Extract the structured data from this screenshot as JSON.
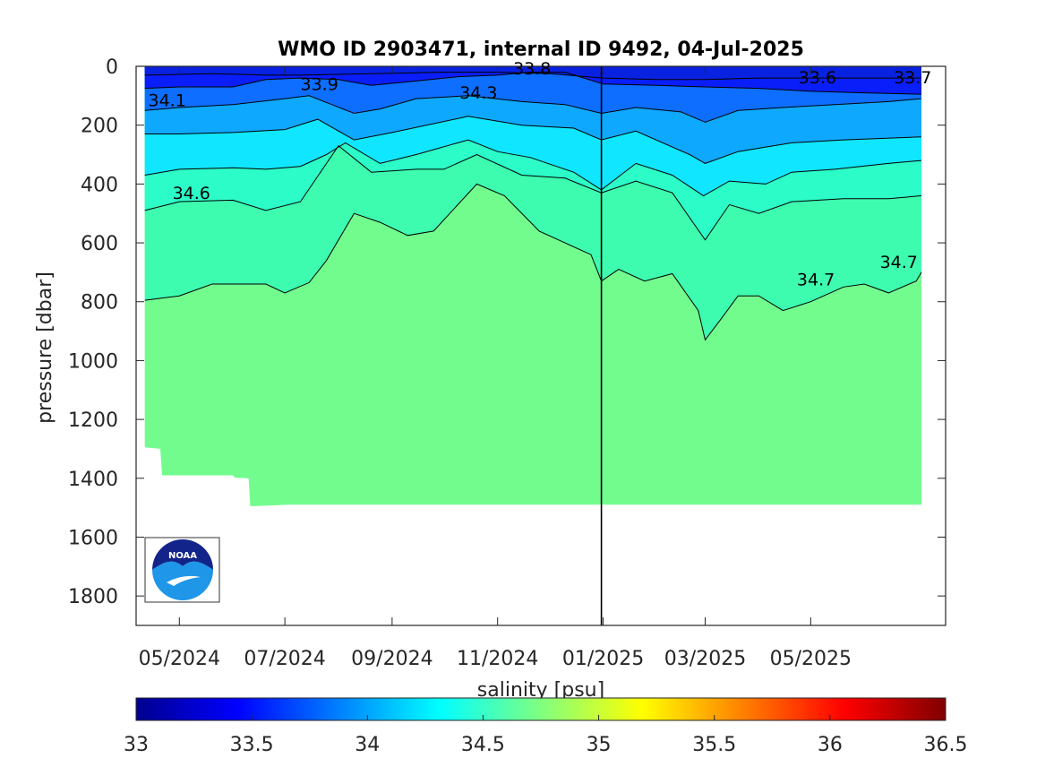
{
  "chart_data": {
    "type": "heatmap",
    "title": "WMO ID 2903471, internal ID 9492, 04-Jul-2025",
    "xlabel": "",
    "ylabel": "pressure [dbar]",
    "colorbar_label": "salinity [psu]",
    "colormap": "jet",
    "colorbar_range": [
      33,
      36.5
    ],
    "colorbar_ticks": [
      "33",
      "33.5",
      "34",
      "34.5",
      "35",
      "35.5",
      "36",
      "36.5"
    ],
    "y_reversed": true,
    "ylim": [
      0,
      1900
    ],
    "y_ticks": [
      0,
      200,
      400,
      600,
      800,
      1000,
      1200,
      1400,
      1600,
      1800
    ],
    "xlim": [
      "2024-04-06",
      "2025-07-18"
    ],
    "x_ticks": [
      {
        "date": "2024-05-01",
        "label": "05/2024"
      },
      {
        "date": "2024-07-01",
        "label": "07/2024"
      },
      {
        "date": "2024-09-01",
        "label": "09/2024"
      },
      {
        "date": "2024-11-01",
        "label": "11/2024"
      },
      {
        "date": "2025-01-01",
        "label": "01/2025"
      },
      {
        "date": "2025-03-01",
        "label": "03/2025"
      },
      {
        "date": "2025-05-01",
        "label": "05/2025"
      }
    ],
    "vertical_marker_date": "2024-12-31",
    "data_start": "2024-04-11",
    "data_end": "2025-07-04",
    "bands": [
      {
        "level": "33.6",
        "color": "#0a1efa",
        "depth": [
          [
            "2024-04-11",
            30
          ],
          [
            "2024-05-20",
            25
          ],
          [
            "2024-06-20",
            30
          ],
          [
            "2024-07-10",
            30
          ],
          [
            "2024-08-20",
            25
          ],
          [
            "2024-10-01",
            20
          ],
          [
            "2024-11-01",
            20
          ],
          [
            "2024-12-01",
            25
          ],
          [
            "2025-01-01",
            40
          ],
          [
            "2025-02-01",
            45
          ],
          [
            "2025-03-01",
            45
          ],
          [
            "2025-04-01",
            40
          ],
          [
            "2025-05-01",
            40
          ],
          [
            "2025-06-01",
            40
          ],
          [
            "2025-07-04",
            40
          ]
        ]
      },
      {
        "level": "33.8",
        "color": "#0d6eff",
        "depth": [
          [
            "2024-04-11",
            75
          ],
          [
            "2024-05-01",
            70
          ],
          [
            "2024-06-01",
            70
          ],
          [
            "2024-06-20",
            45
          ],
          [
            "2024-07-10",
            40
          ],
          [
            "2024-08-01",
            45
          ],
          [
            "2024-08-20",
            65
          ],
          [
            "2024-09-15",
            50
          ],
          [
            "2024-10-10",
            35
          ],
          [
            "2024-11-01",
            30
          ],
          [
            "2024-11-20",
            20
          ],
          [
            "2024-12-10",
            20
          ],
          [
            "2025-01-01",
            60
          ],
          [
            "2025-02-01",
            65
          ],
          [
            "2025-03-01",
            70
          ],
          [
            "2025-04-01",
            75
          ],
          [
            "2025-05-01",
            85
          ],
          [
            "2025-06-01",
            90
          ],
          [
            "2025-07-04",
            95
          ]
        ]
      },
      {
        "level": "34.1",
        "color": "#0fa8ff",
        "depth": [
          [
            "2024-04-11",
            150
          ],
          [
            "2024-05-01",
            140
          ],
          [
            "2024-06-01",
            130
          ],
          [
            "2024-07-01",
            110
          ],
          [
            "2024-07-15",
            100
          ],
          [
            "2024-08-10",
            160
          ],
          [
            "2024-08-25",
            145
          ],
          [
            "2024-09-15",
            110
          ],
          [
            "2024-10-15",
            100
          ],
          [
            "2024-11-15",
            120
          ],
          [
            "2024-12-10",
            130
          ],
          [
            "2024-12-31",
            160
          ],
          [
            "2025-01-20",
            140
          ],
          [
            "2025-02-15",
            155
          ],
          [
            "2025-03-01",
            190
          ],
          [
            "2025-03-20",
            150
          ],
          [
            "2025-04-15",
            140
          ],
          [
            "2025-05-15",
            130
          ],
          [
            "2025-06-15",
            120
          ],
          [
            "2025-07-04",
            110
          ]
        ]
      },
      {
        "level": "34.3",
        "color": "#10e6ff",
        "depth": [
          [
            "2024-04-11",
            230
          ],
          [
            "2024-05-01",
            230
          ],
          [
            "2024-06-01",
            225
          ],
          [
            "2024-07-01",
            215
          ],
          [
            "2024-07-20",
            180
          ],
          [
            "2024-08-10",
            250
          ],
          [
            "2024-09-01",
            225
          ],
          [
            "2024-10-15",
            170
          ],
          [
            "2024-11-15",
            200
          ],
          [
            "2024-12-15",
            210
          ],
          [
            "2024-12-31",
            250
          ],
          [
            "2025-01-20",
            220
          ],
          [
            "2025-02-20",
            300
          ],
          [
            "2025-03-01",
            330
          ],
          [
            "2025-03-20",
            290
          ],
          [
            "2025-04-20",
            260
          ],
          [
            "2025-05-20",
            250
          ],
          [
            "2025-07-04",
            240
          ]
        ]
      },
      {
        "level": "34.5",
        "color": "#2bfcc8",
        "depth": [
          [
            "2024-04-11",
            370
          ],
          [
            "2024-05-01",
            350
          ],
          [
            "2024-06-01",
            345
          ],
          [
            "2024-06-20",
            350
          ],
          [
            "2024-07-10",
            340
          ],
          [
            "2024-07-25",
            300
          ],
          [
            "2024-08-05",
            260
          ],
          [
            "2024-08-25",
            330
          ],
          [
            "2024-09-15",
            300
          ],
          [
            "2024-10-15",
            250
          ],
          [
            "2024-11-01",
            290
          ],
          [
            "2024-11-20",
            310
          ],
          [
            "2024-12-15",
            360
          ],
          [
            "2024-12-31",
            420
          ],
          [
            "2025-01-20",
            330
          ],
          [
            "2025-02-10",
            370
          ],
          [
            "2025-02-28",
            440
          ],
          [
            "2025-03-15",
            390
          ],
          [
            "2025-04-05",
            400
          ],
          [
            "2025-04-20",
            360
          ],
          [
            "2025-05-15",
            350
          ],
          [
            "2025-06-15",
            330
          ],
          [
            "2025-07-04",
            320
          ]
        ]
      },
      {
        "level": "34.6",
        "color": "#3dfcb0",
        "depth": [
          [
            "2024-04-11",
            490
          ],
          [
            "2024-05-01",
            460
          ],
          [
            "2024-06-01",
            455
          ],
          [
            "2024-06-20",
            490
          ],
          [
            "2024-07-10",
            460
          ],
          [
            "2024-08-01",
            270
          ],
          [
            "2024-08-20",
            360
          ],
          [
            "2024-09-15",
            350
          ],
          [
            "2024-10-01",
            350
          ],
          [
            "2024-10-20",
            300
          ],
          [
            "2024-11-15",
            370
          ],
          [
            "2024-12-10",
            380
          ],
          [
            "2024-12-31",
            430
          ],
          [
            "2025-01-20",
            390
          ],
          [
            "2025-02-10",
            430
          ],
          [
            "2025-03-01",
            590
          ],
          [
            "2025-03-15",
            470
          ],
          [
            "2025-04-01",
            500
          ],
          [
            "2025-04-20",
            460
          ],
          [
            "2025-05-20",
            450
          ],
          [
            "2025-06-15",
            450
          ],
          [
            "2025-07-04",
            440
          ]
        ]
      },
      {
        "level": "34.7",
        "color": "#72fc8e",
        "depth": [
          [
            "2024-04-11",
            795
          ],
          [
            "2024-05-01",
            780
          ],
          [
            "2024-05-20",
            740
          ],
          [
            "2024-06-20",
            740
          ],
          [
            "2024-07-01",
            770
          ],
          [
            "2024-07-15",
            735
          ],
          [
            "2024-07-25",
            660
          ],
          [
            "2024-08-10",
            500
          ],
          [
            "2024-08-25",
            530
          ],
          [
            "2024-09-10",
            575
          ],
          [
            "2024-09-25",
            560
          ],
          [
            "2024-10-20",
            400
          ],
          [
            "2024-11-05",
            440
          ],
          [
            "2024-11-25",
            560
          ],
          [
            "2024-12-10",
            600
          ],
          [
            "2024-12-25",
            640
          ],
          [
            "2024-12-31",
            730
          ],
          [
            "2025-01-10",
            690
          ],
          [
            "2025-01-25",
            730
          ],
          [
            "2025-02-10",
            705
          ],
          [
            "2025-02-25",
            830
          ],
          [
            "2025-03-01",
            930
          ],
          [
            "2025-03-10",
            860
          ],
          [
            "2025-03-20",
            780
          ],
          [
            "2025-04-01",
            780
          ],
          [
            "2025-04-15",
            830
          ],
          [
            "2025-05-01",
            800
          ],
          [
            "2025-05-20",
            750
          ],
          [
            "2025-06-01",
            740
          ],
          [
            "2025-06-15",
            770
          ],
          [
            "2025-07-01",
            730
          ],
          [
            "2025-07-04",
            700
          ]
        ]
      }
    ],
    "profile_bottom": [
      [
        "2024-04-11",
        1295
      ],
      [
        "2024-04-20",
        1300
      ],
      [
        "2024-04-21",
        1390
      ],
      [
        "2024-06-01",
        1390
      ],
      [
        "2024-06-02",
        1398
      ],
      [
        "2024-06-10",
        1400
      ],
      [
        "2024-06-11",
        1495
      ],
      [
        "2024-07-04",
        1490
      ],
      [
        "2025-07-04",
        1490
      ]
    ],
    "contour_labels": [
      {
        "text": "33.8",
        "date": "2024-11-10",
        "pressure": 28
      },
      {
        "text": "33.9",
        "date": "2024-07-10",
        "pressure": 80
      },
      {
        "text": "34.1",
        "date": "2024-04-13",
        "pressure": 135
      },
      {
        "text": "34.3",
        "date": "2024-10-10",
        "pressure": 110
      },
      {
        "text": "34.6",
        "date": "2024-04-27",
        "pressure": 450
      },
      {
        "text": "33.6",
        "date": "2025-04-24",
        "pressure": 58
      },
      {
        "text": "33.7",
        "date": "2025-06-18",
        "pressure": 58
      },
      {
        "text": "34.7",
        "date": "2025-04-23",
        "pressure": 745
      },
      {
        "text": "34.7",
        "date": "2025-06-10",
        "pressure": 685
      }
    ]
  },
  "logo": {
    "text": "NOAA",
    "icon": "noaa-logo-icon"
  }
}
